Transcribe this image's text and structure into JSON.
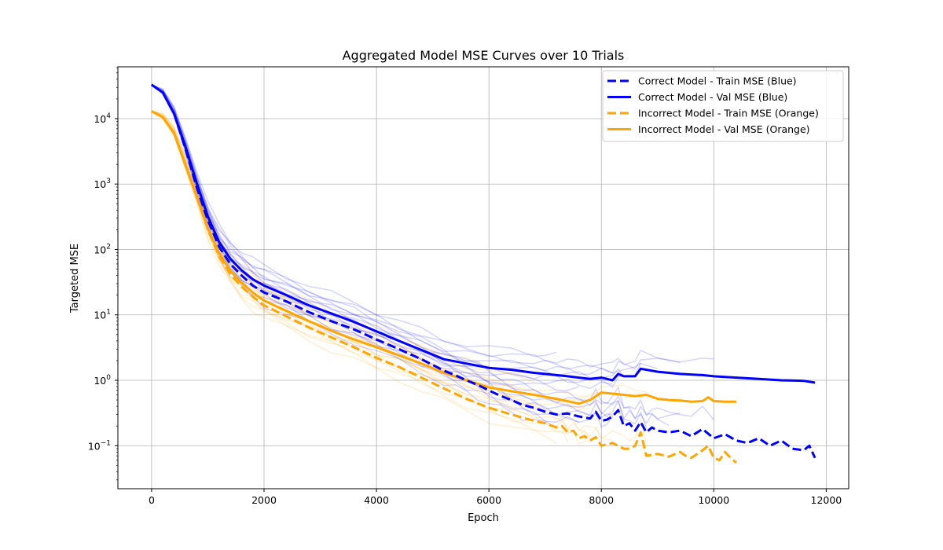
{
  "chart_data": {
    "type": "line",
    "title": "Aggregated Model MSE Curves over 10 Trials",
    "xlabel": "Epoch",
    "ylabel": "Targeted MSE",
    "xlim": [
      -600,
      12400
    ],
    "ylim": [
      0.022,
      62000
    ],
    "yscale": "log",
    "grid": true,
    "legend_position": "top-right",
    "x_ticks": [
      {
        "value": 0,
        "label": "0"
      },
      {
        "value": 2000,
        "label": "2000"
      },
      {
        "value": 4000,
        "label": "4000"
      },
      {
        "value": 6000,
        "label": "6000"
      },
      {
        "value": 8000,
        "label": "8000"
      },
      {
        "value": 10000,
        "label": "10000"
      },
      {
        "value": 12000,
        "label": "12000"
      }
    ],
    "y_ticks": [
      {
        "value": 0.1,
        "base": "10",
        "exp": "−1"
      },
      {
        "value": 1,
        "base": "10",
        "exp": "0"
      },
      {
        "value": 10,
        "base": "10",
        "exp": "1"
      },
      {
        "value": 100,
        "base": "10",
        "exp": "2"
      },
      {
        "value": 1000,
        "base": "10",
        "exp": "3"
      },
      {
        "value": 10000,
        "base": "10",
        "exp": "4"
      }
    ],
    "series": [
      {
        "name": "Correct Model - Train MSE (Blue)",
        "color": "#0000ff",
        "style": "dashed",
        "x": [
          0,
          200,
          400,
          600,
          800,
          1000,
          1200,
          1400,
          1600,
          1800,
          2000,
          2400,
          2800,
          3200,
          3600,
          4000,
          4400,
          4800,
          5200,
          5400,
          5600,
          5800,
          6000,
          6200,
          6400,
          6600,
          6800,
          7000,
          7200,
          7400,
          7600,
          7800,
          7900,
          8000,
          8100,
          8200,
          8300,
          8400,
          8500,
          8600,
          8700,
          8800,
          8900,
          9000,
          9200,
          9400,
          9600,
          9800,
          10000,
          10200,
          10400,
          10600,
          10800,
          11000,
          11200,
          11400,
          11600,
          11700,
          11800
        ],
        "values": [
          33000,
          25000,
          12000,
          3500,
          900,
          280,
          110,
          60,
          40,
          28,
          22,
          16,
          11,
          8,
          6,
          4.2,
          3,
          2.1,
          1.4,
          1.2,
          1.0,
          0.85,
          0.7,
          0.58,
          0.5,
          0.42,
          0.38,
          0.33,
          0.3,
          0.31,
          0.28,
          0.26,
          0.33,
          0.24,
          0.25,
          0.28,
          0.35,
          0.2,
          0.22,
          0.17,
          0.23,
          0.16,
          0.19,
          0.17,
          0.16,
          0.17,
          0.14,
          0.18,
          0.13,
          0.15,
          0.12,
          0.11,
          0.13,
          0.1,
          0.12,
          0.09,
          0.085,
          0.1,
          0.065
        ]
      },
      {
        "name": "Correct Model - Val MSE (Blue)",
        "color": "#0000ff",
        "style": "solid",
        "x": [
          0,
          200,
          400,
          600,
          800,
          1000,
          1200,
          1400,
          1600,
          1800,
          2000,
          2400,
          2800,
          3200,
          3600,
          4000,
          4400,
          4800,
          5200,
          5600,
          6000,
          6400,
          6800,
          7000,
          7200,
          7400,
          7600,
          7800,
          8000,
          8200,
          8300,
          8400,
          8600,
          8700,
          9000,
          9400,
          9800,
          10000,
          10400,
          10800,
          11200,
          11600,
          11800
        ],
        "values": [
          33000,
          25000,
          12000,
          3800,
          1050,
          320,
          130,
          72,
          48,
          35,
          28,
          20,
          14,
          10.5,
          7.8,
          5.6,
          4.0,
          2.9,
          2.1,
          1.8,
          1.55,
          1.45,
          1.3,
          1.25,
          1.2,
          1.15,
          1.1,
          1.05,
          1.1,
          1.0,
          1.25,
          1.15,
          1.15,
          1.5,
          1.35,
          1.25,
          1.2,
          1.15,
          1.1,
          1.05,
          1.0,
          0.98,
          0.92
        ]
      },
      {
        "name": "Incorrect Model - Train MSE (Orange)",
        "color": "#ffa500",
        "style": "dashed",
        "x": [
          0,
          200,
          400,
          600,
          800,
          1000,
          1200,
          1400,
          1600,
          1800,
          2000,
          2400,
          2800,
          3200,
          3600,
          4000,
          4400,
          4800,
          5200,
          5600,
          6000,
          6400,
          6800,
          7000,
          7200,
          7300,
          7400,
          7500,
          7600,
          7700,
          7800,
          7900,
          8000,
          8200,
          8400,
          8500,
          8600,
          8700,
          8800,
          9000,
          9200,
          9400,
          9500,
          9600,
          9800,
          9900,
          10000,
          10100,
          10200,
          10300,
          10400
        ],
        "values": [
          13000,
          10500,
          6000,
          2000,
          650,
          200,
          80,
          42,
          27,
          19,
          14,
          9.5,
          6.4,
          4.5,
          3.2,
          2.2,
          1.6,
          1.1,
          0.75,
          0.52,
          0.38,
          0.3,
          0.24,
          0.22,
          0.19,
          0.2,
          0.16,
          0.17,
          0.13,
          0.14,
          0.12,
          0.135,
          0.1,
          0.11,
          0.09,
          0.09,
          0.1,
          0.16,
          0.07,
          0.075,
          0.068,
          0.08,
          0.07,
          0.065,
          0.085,
          0.1,
          0.065,
          0.06,
          0.08,
          0.065,
          0.055
        ]
      },
      {
        "name": "Incorrect Model - Val MSE (Orange)",
        "color": "#ffa500",
        "style": "solid",
        "x": [
          0,
          200,
          400,
          600,
          800,
          1000,
          1200,
          1400,
          1600,
          1800,
          2000,
          2400,
          2800,
          3200,
          3600,
          4000,
          4400,
          4800,
          5200,
          5600,
          6000,
          6400,
          6800,
          7200,
          7600,
          7800,
          8000,
          8400,
          8600,
          8800,
          9000,
          9200,
          9400,
          9600,
          9800,
          9900,
          10000,
          10200,
          10400
        ],
        "values": [
          13000,
          10500,
          6000,
          2000,
          650,
          210,
          88,
          47,
          31,
          22,
          16.5,
          11.5,
          8.0,
          5.7,
          4.2,
          3.2,
          2.4,
          1.8,
          1.3,
          1.0,
          0.78,
          0.68,
          0.6,
          0.52,
          0.44,
          0.5,
          0.65,
          0.6,
          0.57,
          0.6,
          0.52,
          0.5,
          0.49,
          0.47,
          0.48,
          0.55,
          0.48,
          0.47,
          0.47
        ]
      }
    ]
  }
}
